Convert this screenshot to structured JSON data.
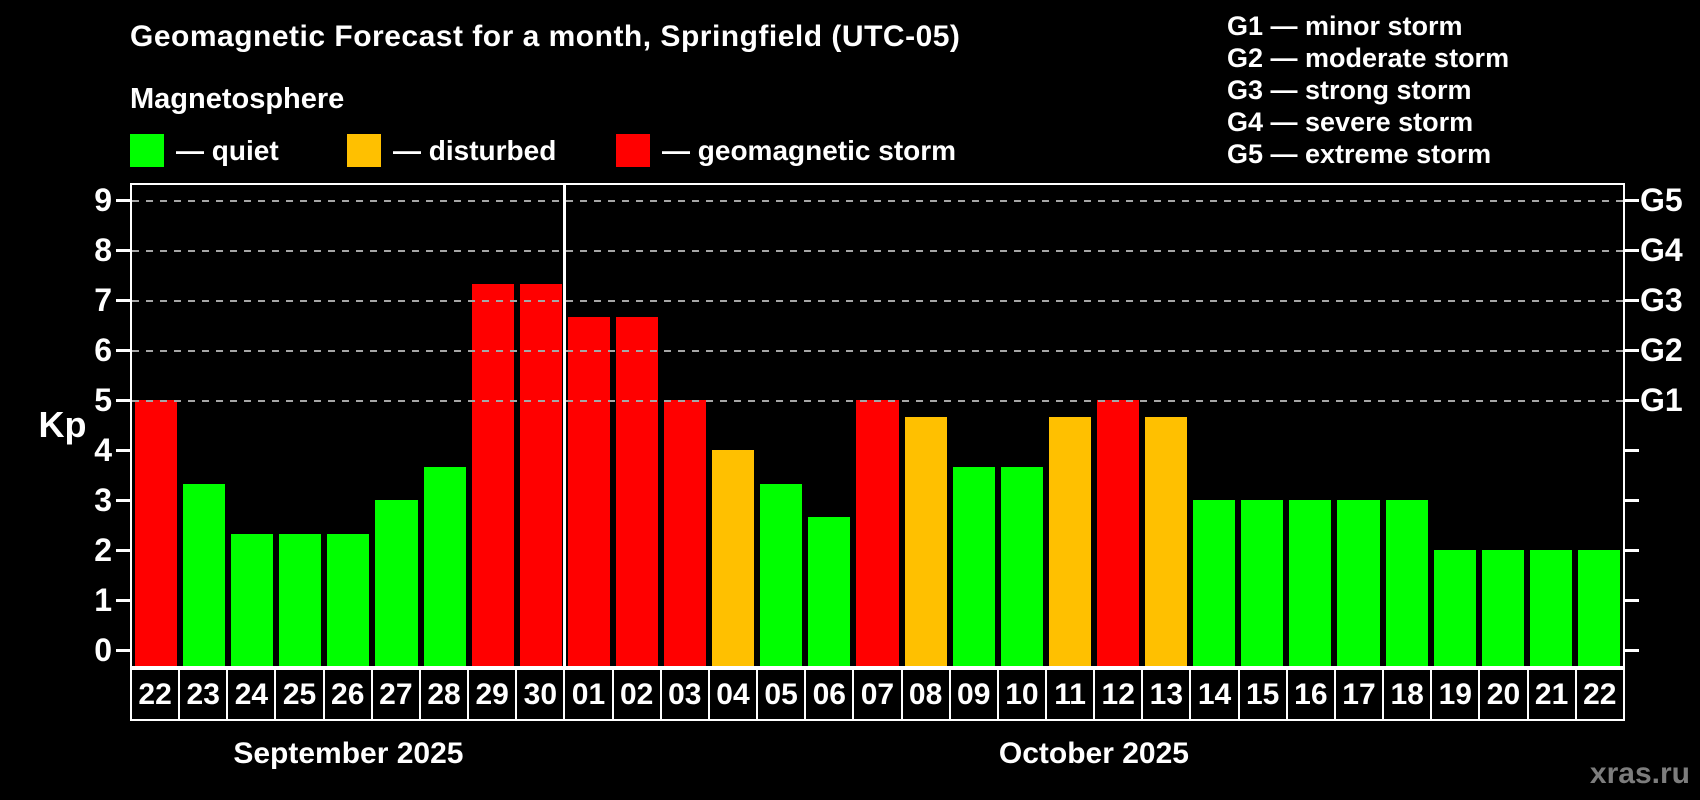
{
  "title": "Geomagnetic Forecast for a month, Springfield (UTC-05)",
  "subtitle": "Magnetosphere",
  "legend": {
    "quiet": "— quiet",
    "disturbed": "— disturbed",
    "storm": "— geomagnetic storm"
  },
  "g_legend": [
    "G1 — minor storm",
    "G2 — moderate storm",
    "G3 — strong storm",
    "G4 — severe storm",
    "G5 — extreme storm"
  ],
  "watermark": "xras.ru",
  "chart_data": {
    "type": "bar",
    "title": "Geomagnetic Forecast for a month, Springfield (UTC-05)",
    "subtitle": "Magnetosphere",
    "ylabel": "Kp",
    "y_ticks": [
      0,
      1,
      2,
      3,
      4,
      5,
      6,
      7,
      8,
      9
    ],
    "ylim": [
      -0.34,
      9.36
    ],
    "grid": "dashed horizontal at Kp 5-9",
    "gridlines_kp": [
      5,
      6,
      7,
      8,
      9
    ],
    "right_axis_labels": [
      {
        "label": "G1",
        "kp": 5
      },
      {
        "label": "G2",
        "kp": 6
      },
      {
        "label": "G3",
        "kp": 7
      },
      {
        "label": "G4",
        "kp": 8
      },
      {
        "label": "G5",
        "kp": 9
      }
    ],
    "colors": {
      "quiet": "#00ff00",
      "disturbed": "#ffc000",
      "storm": "#ff0000"
    },
    "months": [
      {
        "name": "September 2025",
        "days": [
          {
            "label": "22",
            "kp": 5.0,
            "status": "storm"
          },
          {
            "label": "23",
            "kp": 3.33,
            "status": "quiet"
          },
          {
            "label": "24",
            "kp": 2.33,
            "status": "quiet"
          },
          {
            "label": "25",
            "kp": 2.33,
            "status": "quiet"
          },
          {
            "label": "26",
            "kp": 2.33,
            "status": "quiet"
          },
          {
            "label": "27",
            "kp": 3.0,
            "status": "quiet"
          },
          {
            "label": "28",
            "kp": 3.67,
            "status": "quiet"
          },
          {
            "label": "29",
            "kp": 7.33,
            "status": "storm"
          },
          {
            "label": "30",
            "kp": 7.33,
            "status": "storm"
          }
        ]
      },
      {
        "name": "October 2025",
        "days": [
          {
            "label": "01",
            "kp": 6.67,
            "status": "storm"
          },
          {
            "label": "02",
            "kp": 6.67,
            "status": "storm"
          },
          {
            "label": "03",
            "kp": 5.0,
            "status": "storm"
          },
          {
            "label": "04",
            "kp": 4.0,
            "status": "disturbed"
          },
          {
            "label": "05",
            "kp": 3.33,
            "status": "quiet"
          },
          {
            "label": "06",
            "kp": 2.67,
            "status": "quiet"
          },
          {
            "label": "07",
            "kp": 5.0,
            "status": "storm"
          },
          {
            "label": "08",
            "kp": 4.67,
            "status": "disturbed"
          },
          {
            "label": "09",
            "kp": 3.67,
            "status": "quiet"
          },
          {
            "label": "10",
            "kp": 3.67,
            "status": "quiet"
          },
          {
            "label": "11",
            "kp": 4.67,
            "status": "disturbed"
          },
          {
            "label": "12",
            "kp": 5.0,
            "status": "storm"
          },
          {
            "label": "13",
            "kp": 4.67,
            "status": "disturbed"
          },
          {
            "label": "14",
            "kp": 3.0,
            "status": "quiet"
          },
          {
            "label": "15",
            "kp": 3.0,
            "status": "quiet"
          },
          {
            "label": "16",
            "kp": 3.0,
            "status": "quiet"
          },
          {
            "label": "17",
            "kp": 3.0,
            "status": "quiet"
          },
          {
            "label": "18",
            "kp": 3.0,
            "status": "quiet"
          },
          {
            "label": "19",
            "kp": 2.0,
            "status": "quiet"
          },
          {
            "label": "20",
            "kp": 2.0,
            "status": "quiet"
          },
          {
            "label": "21",
            "kp": 2.0,
            "status": "quiet"
          },
          {
            "label": "22",
            "kp": 2.0,
            "status": "quiet"
          }
        ]
      }
    ]
  }
}
